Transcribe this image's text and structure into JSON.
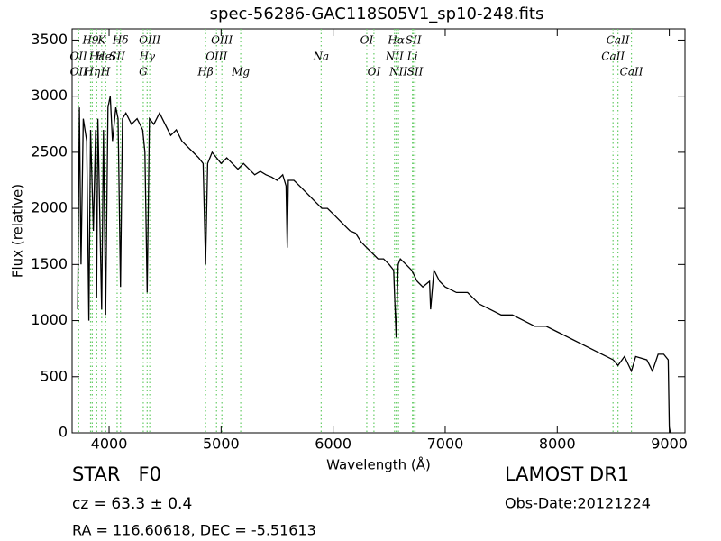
{
  "chart_data": {
    "type": "line",
    "title": "spec-56286-GAC118S05V1_sp10-248.fits",
    "x_label": "Wavelength (Å)",
    "y_label": "Flux (relative)",
    "color": "#000000",
    "line_color": "#66cc66",
    "xlim": [
      3670,
      9140
    ],
    "ylim": [
      0,
      3600
    ],
    "xticks": [
      4000,
      5000,
      6000,
      7000,
      8000,
      9000
    ],
    "yticks": [
      0,
      500,
      1000,
      1500,
      2000,
      2500,
      3000,
      3500
    ],
    "x": [
      3720,
      3735,
      3750,
      3770,
      3800,
      3820,
      3835,
      3860,
      3880,
      3889,
      3900,
      3934,
      3950,
      3969,
      3990,
      4010,
      4030,
      4060,
      4080,
      4102,
      4120,
      4150,
      4200,
      4250,
      4300,
      4320,
      4340,
      4360,
      4400,
      4450,
      4500,
      4550,
      4600,
      4650,
      4700,
      4750,
      4800,
      4840,
      4861,
      4880,
      4920,
      4960,
      5000,
      5050,
      5100,
      5150,
      5200,
      5250,
      5300,
      5350,
      5400,
      5450,
      5500,
      5550,
      5580,
      5590,
      5600,
      5650,
      5700,
      5750,
      5800,
      5850,
      5900,
      5950,
      6000,
      6050,
      6100,
      6150,
      6200,
      6250,
      6300,
      6350,
      6400,
      6450,
      6500,
      6540,
      6563,
      6580,
      6600,
      6650,
      6700,
      6750,
      6800,
      6860,
      6870,
      6900,
      6950,
      7000,
      7100,
      7200,
      7300,
      7400,
      7500,
      7600,
      7700,
      7800,
      7900,
      8000,
      8100,
      8200,
      8300,
      8400,
      8500,
      8542,
      8600,
      8662,
      8700,
      8800,
      8850,
      8900,
      8950,
      8990,
      9000,
      9010
    ],
    "values": [
      1100,
      2900,
      1500,
      2800,
      2600,
      1000,
      2700,
      1800,
      2700,
      1200,
      2800,
      1100,
      2700,
      1050,
      2900,
      3000,
      2600,
      2900,
      2800,
      1300,
      2800,
      2850,
      2750,
      2800,
      2700,
      2500,
      1250,
      2800,
      2750,
      2850,
      2750,
      2650,
      2700,
      2600,
      2550,
      2500,
      2450,
      2400,
      1500,
      2400,
      2500,
      2450,
      2400,
      2450,
      2400,
      2350,
      2400,
      2350,
      2300,
      2330,
      2300,
      2280,
      2250,
      2300,
      2200,
      1650,
      2250,
      2250,
      2200,
      2150,
      2100,
      2050,
      2000,
      2000,
      1950,
      1900,
      1850,
      1800,
      1780,
      1700,
      1650,
      1600,
      1550,
      1550,
      1500,
      1450,
      850,
      1500,
      1550,
      1500,
      1450,
      1350,
      1300,
      1350,
      1100,
      1450,
      1350,
      1300,
      1250,
      1250,
      1150,
      1100,
      1050,
      1050,
      1000,
      950,
      950,
      900,
      850,
      800,
      750,
      700,
      650,
      600,
      680,
      550,
      680,
      650,
      550,
      700,
      700,
      650,
      50,
      0
    ],
    "line_labels": [
      [
        {
          "label": "H9",
          "wavelength": 3835
        },
        {
          "label": "K",
          "wavelength": 3934
        },
        {
          "label": "Hδ",
          "wavelength": 4102
        },
        {
          "label": "OIII",
          "wavelength": 4363
        },
        {
          "label": "OIII",
          "wavelength": 5007
        },
        {
          "label": "OI",
          "wavelength": 6300
        },
        {
          "label": "Hα",
          "wavelength": 6563
        },
        {
          "label": "SII",
          "wavelength": 6717
        },
        {
          "label": "CaII",
          "wavelength": 8542
        }
      ],
      [
        {
          "label": "OII",
          "wavelength": 3727
        },
        {
          "label": "Hε",
          "wavelength": 3890
        },
        {
          "label": "HeI",
          "wavelength": 3970
        },
        {
          "label": "SII",
          "wavelength": 4072
        },
        {
          "label": "Hγ",
          "wavelength": 4340
        },
        {
          "label": "OIII",
          "wavelength": 4959
        },
        {
          "label": "Na",
          "wavelength": 5893
        },
        {
          "label": "NII",
          "wavelength": 6548
        },
        {
          "label": "Li",
          "wavelength": 6708
        },
        {
          "label": "CaII",
          "wavelength": 8498
        }
      ],
      [
        {
          "label": "OII",
          "wavelength": 3729
        },
        {
          "label": "Hη",
          "wavelength": 3850
        },
        {
          "label": "H",
          "wavelength": 3969
        },
        {
          "label": "G",
          "wavelength": 4305
        },
        {
          "label": "Hβ",
          "wavelength": 4861
        },
        {
          "label": "Mg",
          "wavelength": 5175
        },
        {
          "label": "OI",
          "wavelength": 6364
        },
        {
          "label": "NII",
          "wavelength": 6583
        },
        {
          "label": "SII",
          "wavelength": 6731
        },
        {
          "label": "CaII",
          "wavelength": 8662
        }
      ]
    ],
    "object_class": "STAR   F0",
    "redshift": "cz = 63.3 ± 0.4",
    "coordinates": "RA = 116.60618, DEC = -5.51613",
    "survey": "LAMOST DR1",
    "obs_date": "Obs-Date:20121224"
  }
}
